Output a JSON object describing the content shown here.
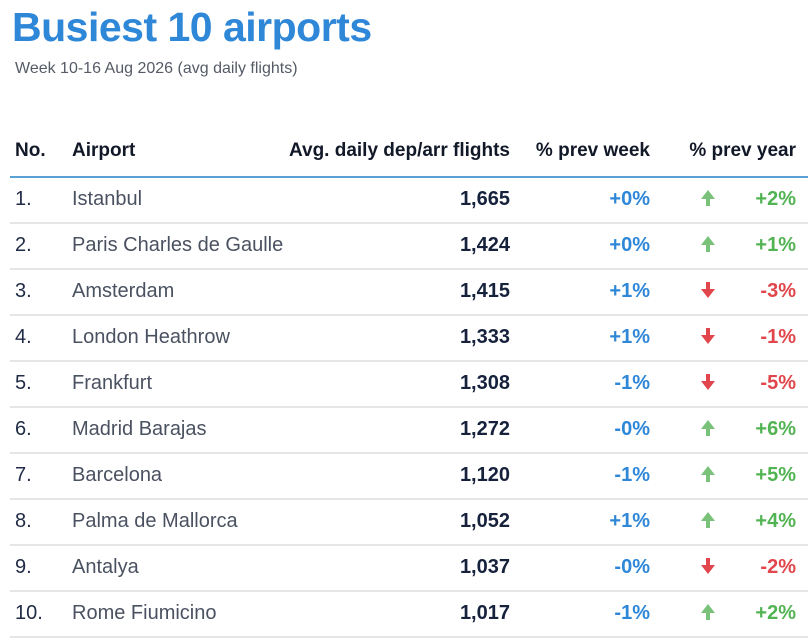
{
  "title": "Busiest 10 airports",
  "subtitle": "Week 10-16 Aug 2026 (avg daily flights)",
  "headers": {
    "no": "No.",
    "airport": "Airport",
    "flights": "Avg. daily dep/arr flights",
    "prev_week": "% prev week",
    "prev_year": "% prev year"
  },
  "colors": {
    "title": "#2f87d8",
    "up": "#52b352",
    "down": "#e0464b",
    "week": "#2f87d8"
  },
  "rows": [
    {
      "no": "1.",
      "airport": "Istanbul",
      "flights": "1,665",
      "prev_week": "+0%",
      "trend": "up",
      "prev_year": "+2%"
    },
    {
      "no": "2.",
      "airport": "Paris Charles de Gaulle",
      "flights": "1,424",
      "prev_week": "+0%",
      "trend": "up",
      "prev_year": "+1%"
    },
    {
      "no": "3.",
      "airport": "Amsterdam",
      "flights": "1,415",
      "prev_week": "+1%",
      "trend": "down",
      "prev_year": "-3%"
    },
    {
      "no": "4.",
      "airport": "London Heathrow",
      "flights": "1,333",
      "prev_week": "+1%",
      "trend": "down",
      "prev_year": "-1%"
    },
    {
      "no": "5.",
      "airport": "Frankfurt",
      "flights": "1,308",
      "prev_week": "-1%",
      "trend": "down",
      "prev_year": "-5%"
    },
    {
      "no": "6.",
      "airport": "Madrid Barajas",
      "flights": "1,272",
      "prev_week": "-0%",
      "trend": "up",
      "prev_year": "+6%"
    },
    {
      "no": "7.",
      "airport": "Barcelona",
      "flights": "1,120",
      "prev_week": "-1%",
      "trend": "up",
      "prev_year": "+5%"
    },
    {
      "no": "8.",
      "airport": "Palma de Mallorca",
      "flights": "1,052",
      "prev_week": "+1%",
      "trend": "up",
      "prev_year": "+4%"
    },
    {
      "no": "9.",
      "airport": "Antalya",
      "flights": "1,037",
      "prev_week": "-0%",
      "trend": "down",
      "prev_year": "-2%"
    },
    {
      "no": "10.",
      "airport": "Rome Fiumicino",
      "flights": "1,017",
      "prev_week": "-1%",
      "trend": "up",
      "prev_year": "+2%"
    }
  ]
}
